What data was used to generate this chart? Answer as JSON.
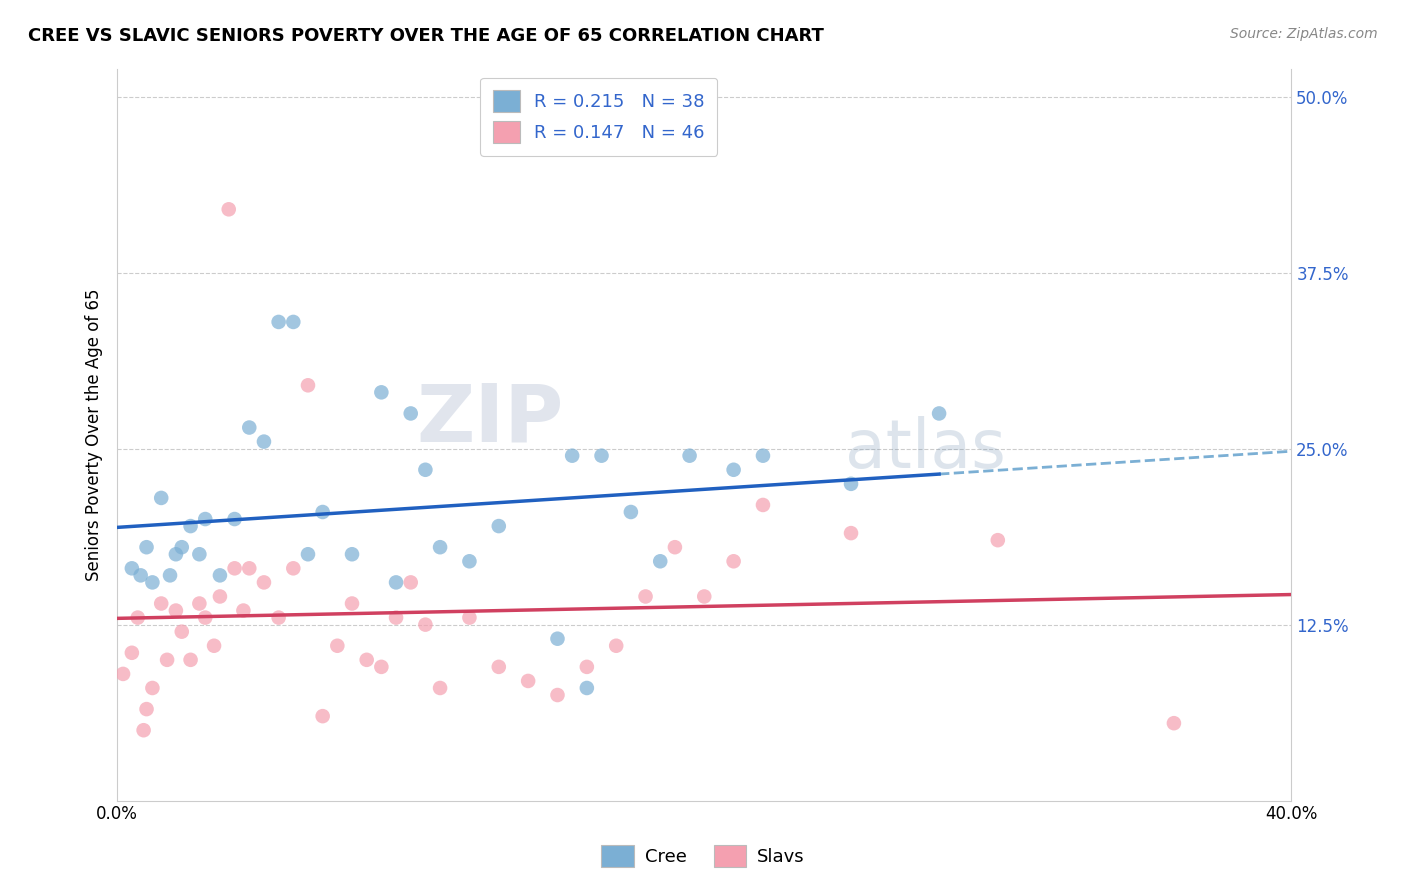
{
  "title": "CREE VS SLAVIC SENIORS POVERTY OVER THE AGE OF 65 CORRELATION CHART",
  "source": "Source: ZipAtlas.com",
  "ylabel": "Seniors Poverty Over the Age of 65",
  "xlim": [
    0.0,
    0.4
  ],
  "ylim": [
    0.0,
    0.52
  ],
  "xticks": [
    0.0,
    0.1,
    0.2,
    0.3,
    0.4
  ],
  "xtick_labels": [
    "0.0%",
    "",
    "",
    "",
    "40.0%"
  ],
  "yticks": [
    0.125,
    0.25,
    0.375,
    0.5
  ],
  "ytick_labels": [
    "12.5%",
    "25.0%",
    "37.5%",
    "50.0%"
  ],
  "grid_color": "#cccccc",
  "cree_color": "#7bafd4",
  "slavs_color": "#f4a0b0",
  "cree_line_color": "#2060c0",
  "slavs_line_color": "#d04060",
  "dashed_line_color": "#7bafd4",
  "legend_text_color": "#3366cc",
  "cree_R": 0.215,
  "cree_N": 38,
  "slavs_R": 0.147,
  "slavs_N": 46,
  "watermark": "ZIPatlas",
  "watermark_color": "#aabbdd",
  "cree_x": [
    0.005,
    0.008,
    0.01,
    0.012,
    0.015,
    0.018,
    0.02,
    0.022,
    0.025,
    0.028,
    0.03,
    0.035,
    0.04,
    0.045,
    0.05,
    0.055,
    0.06,
    0.065,
    0.07,
    0.08,
    0.09,
    0.095,
    0.1,
    0.105,
    0.11,
    0.12,
    0.13,
    0.15,
    0.155,
    0.16,
    0.165,
    0.175,
    0.185,
    0.195,
    0.21,
    0.22,
    0.25,
    0.28
  ],
  "cree_y": [
    0.165,
    0.16,
    0.18,
    0.155,
    0.215,
    0.16,
    0.175,
    0.18,
    0.195,
    0.175,
    0.2,
    0.16,
    0.2,
    0.265,
    0.255,
    0.34,
    0.34,
    0.175,
    0.205,
    0.175,
    0.29,
    0.155,
    0.275,
    0.235,
    0.18,
    0.17,
    0.195,
    0.115,
    0.245,
    0.08,
    0.245,
    0.205,
    0.17,
    0.245,
    0.235,
    0.245,
    0.225,
    0.275
  ],
  "slavs_x": [
    0.002,
    0.005,
    0.007,
    0.009,
    0.01,
    0.012,
    0.015,
    0.017,
    0.02,
    0.022,
    0.025,
    0.028,
    0.03,
    0.033,
    0.035,
    0.038,
    0.04,
    0.043,
    0.045,
    0.05,
    0.055,
    0.06,
    0.065,
    0.07,
    0.075,
    0.08,
    0.085,
    0.09,
    0.095,
    0.1,
    0.105,
    0.11,
    0.12,
    0.13,
    0.14,
    0.15,
    0.16,
    0.17,
    0.18,
    0.19,
    0.2,
    0.21,
    0.22,
    0.25,
    0.3,
    0.36
  ],
  "slavs_y": [
    0.09,
    0.105,
    0.13,
    0.05,
    0.065,
    0.08,
    0.14,
    0.1,
    0.135,
    0.12,
    0.1,
    0.14,
    0.13,
    0.11,
    0.145,
    0.42,
    0.165,
    0.135,
    0.165,
    0.155,
    0.13,
    0.165,
    0.295,
    0.06,
    0.11,
    0.14,
    0.1,
    0.095,
    0.13,
    0.155,
    0.125,
    0.08,
    0.13,
    0.095,
    0.085,
    0.075,
    0.095,
    0.11,
    0.145,
    0.18,
    0.145,
    0.17,
    0.21,
    0.19,
    0.185,
    0.055
  ],
  "cree_line_x_end": 0.28,
  "slavs_line_x_start": 0.0,
  "slavs_line_x_end": 0.4
}
